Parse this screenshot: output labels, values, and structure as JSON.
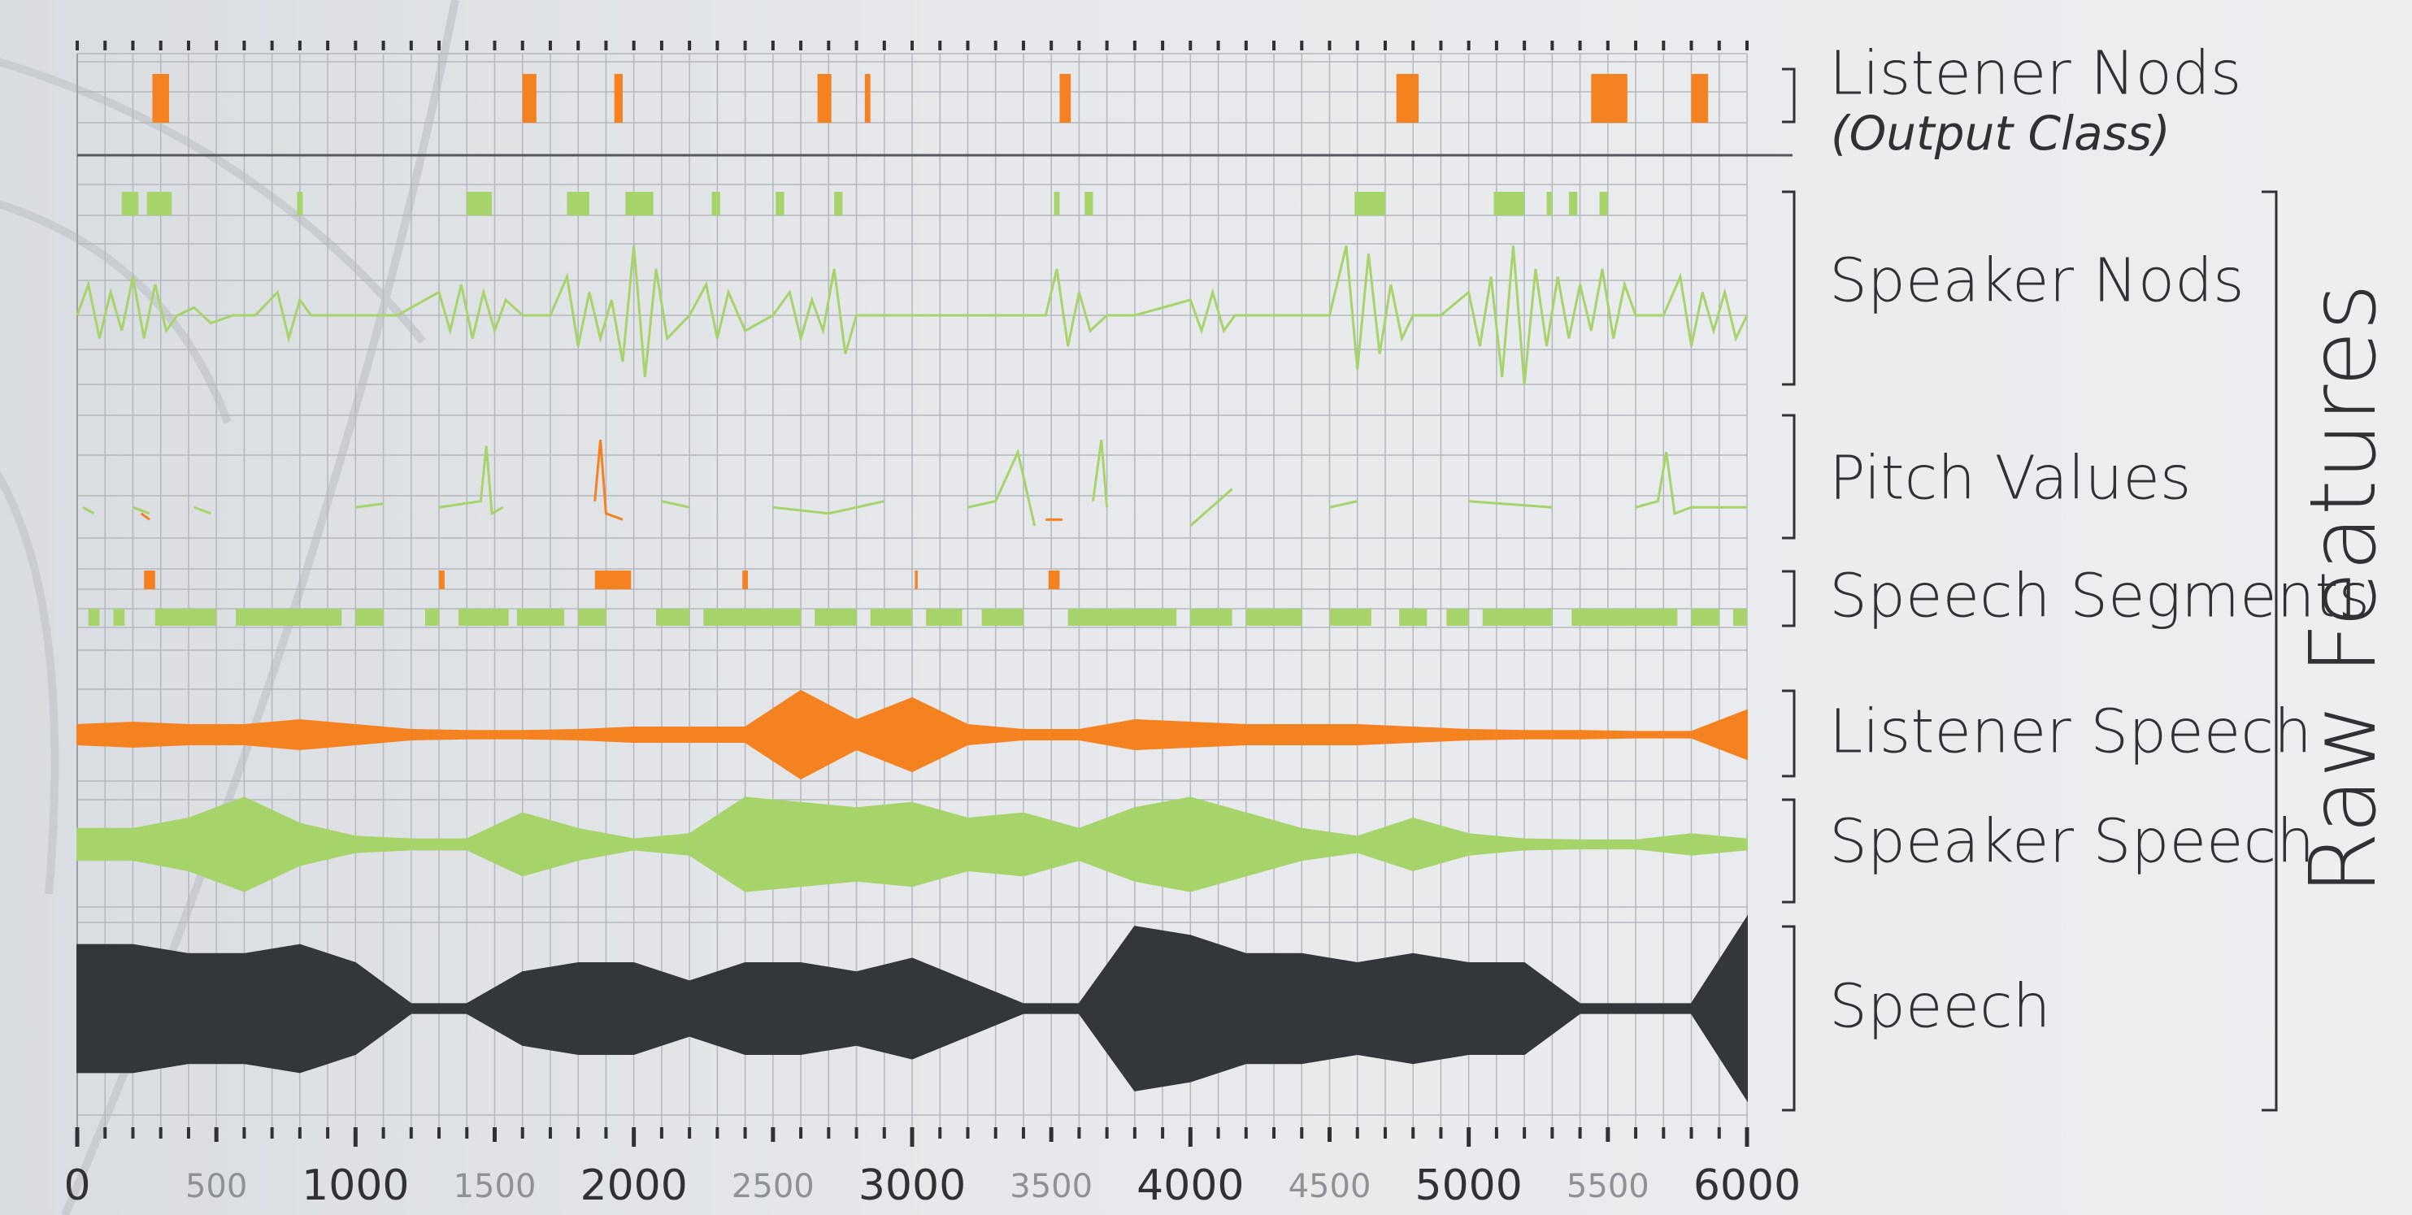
{
  "chart_data": {
    "type": "timeline",
    "xlim": [
      0,
      6000
    ],
    "xticks": [
      0,
      500,
      1000,
      1500,
      2000,
      2500,
      3000,
      3500,
      4000,
      4500,
      5000,
      5500,
      6000
    ],
    "xminor": [
      0,
      100,
      200,
      300,
      400,
      500,
      600,
      700,
      800,
      900,
      1000,
      1100,
      1200,
      1300,
      1400,
      1500,
      1600,
      1700,
      1800,
      1900,
      2000,
      2100,
      2200,
      2300,
      2400,
      2500,
      2600,
      2700,
      2800,
      2900,
      3000,
      3100,
      3200,
      3300,
      3400,
      3500,
      3600,
      3700,
      3800,
      3900,
      4000,
      4100,
      4200,
      4300,
      4400,
      4500,
      4600,
      4700,
      4800,
      4900,
      5000,
      5100,
      5200,
      5300,
      5400,
      5500,
      5600,
      5700,
      5800,
      5900,
      6000
    ],
    "grid": true,
    "group_label": "Raw Features",
    "tracks": [
      {
        "label": "Listener Nods",
        "sublabel": "(Output Class)",
        "series": [
          {
            "kind": "intervals",
            "color": "#f58220",
            "values": [
              [
                270,
                330
              ],
              [
                1600,
                1650
              ],
              [
                1930,
                1960
              ],
              [
                2660,
                2710
              ],
              [
                2830,
                2850
              ],
              [
                3530,
                3570
              ],
              [
                4740,
                4820
              ],
              [
                5440,
                5570
              ],
              [
                5800,
                5860
              ]
            ]
          }
        ]
      },
      {
        "label": "Speaker Nods",
        "series": [
          {
            "kind": "intervals",
            "color": "#a6d46a",
            "values": [
              [
                160,
                220
              ],
              [
                250,
                340
              ],
              [
                790,
                810
              ],
              [
                1400,
                1490
              ],
              [
                1760,
                1840
              ],
              [
                1970,
                2070
              ],
              [
                2280,
                2310
              ],
              [
                2510,
                2540
              ],
              [
                2720,
                2750
              ],
              [
                3510,
                3530
              ],
              [
                3620,
                3650
              ],
              [
                4590,
                4700
              ],
              [
                5090,
                5200
              ],
              [
                5280,
                5300
              ],
              [
                5360,
                5390
              ],
              [
                5470,
                5500
              ]
            ]
          },
          {
            "kind": "line",
            "color": "#a6d46a",
            "x": [
              0,
              40,
              80,
              120,
              160,
              200,
              240,
              280,
              320,
              360,
              420,
              480,
              560,
              640,
              720,
              760,
              800,
              840,
              900,
              1000,
              1150,
              1300,
              1340,
              1380,
              1420,
              1460,
              1500,
              1540,
              1600,
              1700,
              1760,
              1800,
              1840,
              1880,
              1920,
              1960,
              2000,
              2040,
              2080,
              2120,
              2200,
              2260,
              2300,
              2340,
              2400,
              2500,
              2560,
              2600,
              2640,
              2680,
              2720,
              2760,
              2800,
              2900,
              3100,
              3300,
              3480,
              3520,
              3560,
              3600,
              3640,
              3700,
              3800,
              4000,
              4040,
              4080,
              4120,
              4160,
              4300,
              4500,
              4560,
              4600,
              4640,
              4680,
              4720,
              4760,
              4800,
              4900,
              5000,
              5040,
              5080,
              5120,
              5160,
              5200,
              5240,
              5280,
              5320,
              5360,
              5400,
              5440,
              5480,
              5520,
              5560,
              5600,
              5700,
              5760,
              5800,
              5840,
              5880,
              5920,
              5960,
              6000
            ],
            "values": [
              0,
              0.4,
              -0.3,
              0.3,
              -0.2,
              0.5,
              -0.3,
              0.4,
              -0.2,
              0,
              0.1,
              -0.1,
              0,
              0,
              0.3,
              -0.3,
              0.2,
              0,
              0,
              0,
              0,
              0.3,
              -0.2,
              0.4,
              -0.3,
              0.3,
              -0.2,
              0.2,
              0,
              0,
              0.5,
              -0.4,
              0.3,
              -0.3,
              0.2,
              -0.6,
              0.9,
              -0.8,
              0.6,
              -0.3,
              0,
              0.4,
              -0.3,
              0.3,
              -0.2,
              0,
              0.3,
              -0.3,
              0.2,
              -0.2,
              0.6,
              -0.5,
              0,
              0,
              0,
              0,
              0,
              0.6,
              -0.4,
              0.3,
              -0.2,
              0,
              0,
              0.2,
              -0.2,
              0.3,
              -0.2,
              0,
              0,
              0,
              0.9,
              -0.7,
              0.8,
              -0.5,
              0.4,
              -0.3,
              0,
              0,
              0.3,
              -0.4,
              0.5,
              -0.8,
              0.9,
              -0.9,
              0.6,
              -0.4,
              0.5,
              -0.3,
              0.4,
              -0.2,
              0.6,
              -0.3,
              0.4,
              0,
              0,
              0.5,
              -0.4,
              0.3,
              -0.2,
              0.3,
              -0.3,
              0
            ]
          }
        ]
      },
      {
        "label": "Pitch Values",
        "series": [
          {
            "kind": "line",
            "color": "#a6d46a",
            "x": [
              20,
              60,
              100,
              200,
              260,
              300,
              420,
              480,
              520,
              700,
              720,
              1000,
              1100,
              1140,
              1300,
              1450,
              1470,
              1490,
              1530,
              1560,
              2100,
              2200,
              2300,
              2500,
              2700,
              2900,
              2940,
              3200,
              3300,
              3380,
              3440,
              3460,
              3650,
              3680,
              3700,
              3760,
              4000,
              4150,
              4200,
              4500,
              4600,
              4660,
              5000,
              5300,
              5360,
              5600,
              5680,
              5710,
              5740,
              5800,
              6000
            ],
            "values": [
              0.25,
              0.2,
              null,
              0.25,
              0.2,
              null,
              0.25,
              0.2,
              null,
              0.3,
              null,
              0.25,
              0.28,
              null,
              0.25,
              0.3,
              0.75,
              0.2,
              0.25,
              null,
              0.3,
              0.25,
              null,
              0.25,
              0.2,
              0.3,
              null,
              0.25,
              0.3,
              0.7,
              0.1,
              null,
              0.3,
              0.8,
              0.25,
              null,
              0.1,
              0.4,
              null,
              0.25,
              0.3,
              null,
              0.3,
              0.25,
              null,
              0.25,
              0.3,
              0.7,
              0.2,
              0.25,
              0.25
            ]
          },
          {
            "kind": "line",
            "color": "#f58220",
            "x": [
              230,
              260,
              300,
              1860,
              1880,
              1900,
              1960,
              2000,
              3480,
              3540
            ],
            "values": [
              0.2,
              0.15,
              null,
              0.3,
              0.8,
              0.2,
              0.15,
              null,
              0.15,
              0.15
            ]
          }
        ]
      },
      {
        "label": "Speech Segments",
        "series": [
          {
            "kind": "intervals",
            "color": "#f58220",
            "values": [
              [
                240,
                280
              ],
              [
                1300,
                1320
              ],
              [
                1860,
                1990
              ],
              [
                2390,
                2410
              ],
              [
                3010,
                3020
              ],
              [
                3490,
                3530
              ]
            ]
          },
          {
            "kind": "intervals",
            "color": "#a6d46a",
            "values": [
              [
                40,
                80
              ],
              [
                130,
                170
              ],
              [
                280,
                500
              ],
              [
                570,
                950
              ],
              [
                1000,
                1100
              ],
              [
                1250,
                1300
              ],
              [
                1370,
                1550
              ],
              [
                1580,
                1750
              ],
              [
                1800,
                1900
              ],
              [
                2080,
                2200
              ],
              [
                2250,
                2600
              ],
              [
                2650,
                2800
              ],
              [
                2850,
                3000
              ],
              [
                3050,
                3180
              ],
              [
                3250,
                3400
              ],
              [
                3560,
                3950
              ],
              [
                4000,
                4150
              ],
              [
                4200,
                4400
              ],
              [
                4500,
                4650
              ],
              [
                4750,
                4850
              ],
              [
                4920,
                5000
              ],
              [
                5050,
                5300
              ],
              [
                5370,
                5750
              ],
              [
                5800,
                5900
              ],
              [
                5950,
                6000
              ]
            ]
          }
        ]
      },
      {
        "label": "Listener Speech",
        "series": [
          {
            "kind": "envelope",
            "color": "#f58220",
            "x": [
              0,
              200,
              400,
              600,
              800,
              1000,
              1200,
              1400,
              1600,
              1800,
              2000,
              2200,
              2400,
              2600,
              2800,
              3000,
              3200,
              3400,
              3600,
              3800,
              4000,
              4200,
              4400,
              4600,
              4800,
              5000,
              5200,
              5400,
              5600,
              5800,
              6000
            ],
            "values": [
              0.2,
              0.25,
              0.2,
              0.2,
              0.3,
              0.2,
              0.1,
              0.08,
              0.08,
              0.1,
              0.15,
              0.15,
              0.15,
              0.9,
              0.3,
              0.75,
              0.2,
              0.1,
              0.1,
              0.3,
              0.25,
              0.2,
              0.2,
              0.2,
              0.15,
              0.1,
              0.08,
              0.08,
              0.06,
              0.06,
              0.5
            ]
          }
        ]
      },
      {
        "label": "Speaker Speech",
        "series": [
          {
            "kind": "envelope",
            "color": "#a6d46a",
            "x": [
              0,
              200,
              400,
              600,
              800,
              1000,
              1200,
              1400,
              1600,
              1800,
              2000,
              2200,
              2400,
              2600,
              2800,
              3000,
              3200,
              3400,
              3600,
              3800,
              4000,
              4200,
              4400,
              4600,
              4800,
              5000,
              5200,
              5400,
              5600,
              5800,
              6000
            ],
            "values": [
              0.3,
              0.3,
              0.5,
              0.9,
              0.4,
              0.15,
              0.1,
              0.1,
              0.6,
              0.3,
              0.1,
              0.2,
              0.9,
              0.8,
              0.7,
              0.8,
              0.5,
              0.6,
              0.3,
              0.7,
              0.9,
              0.6,
              0.3,
              0.15,
              0.5,
              0.2,
              0.1,
              0.08,
              0.08,
              0.2,
              0.1
            ]
          }
        ]
      },
      {
        "label": "Speech",
        "series": [
          {
            "kind": "envelope",
            "color": "#33363b",
            "x": [
              0,
              200,
              400,
              600,
              800,
              1000,
              1200,
              1400,
              1600,
              1800,
              2000,
              2200,
              2400,
              2600,
              2800,
              3000,
              3200,
              3400,
              3600,
              3800,
              4000,
              4200,
              4400,
              4600,
              4800,
              5000,
              5200,
              5400,
              5600,
              5800,
              6000
            ],
            "values": [
              0.7,
              0.7,
              0.6,
              0.6,
              0.7,
              0.5,
              0.05,
              0.05,
              0.4,
              0.5,
              0.5,
              0.3,
              0.5,
              0.5,
              0.4,
              0.55,
              0.3,
              0.05,
              0.05,
              0.9,
              0.8,
              0.6,
              0.6,
              0.5,
              0.6,
              0.5,
              0.5,
              0.05,
              0.05,
              0.05,
              1.0
            ]
          }
        ]
      }
    ]
  }
}
